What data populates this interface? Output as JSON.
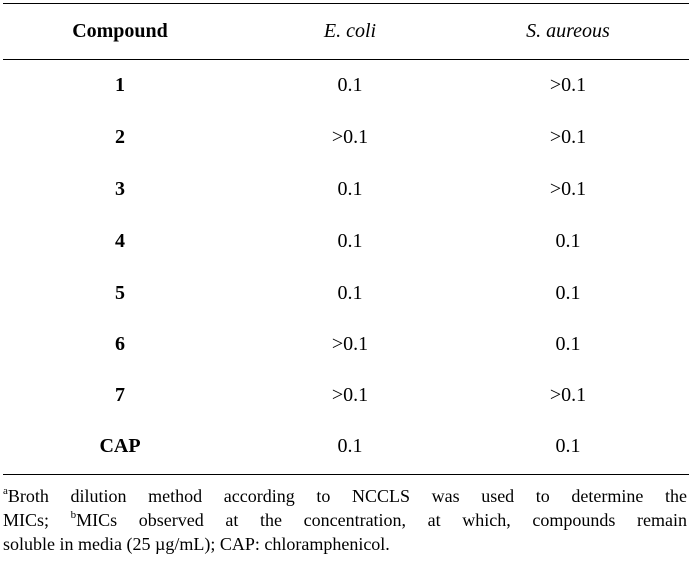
{
  "table": {
    "headers": {
      "compound": "Compound",
      "ecoli": "E. coli",
      "saureus": "S. aureous"
    },
    "rows": [
      {
        "compound": "1",
        "ecoli": "0.1",
        "saureus": ">0.1"
      },
      {
        "compound": "2",
        "ecoli": ">0.1",
        "saureus": ">0.1"
      },
      {
        "compound": "3",
        "ecoli": "0.1",
        "saureus": ">0.1"
      },
      {
        "compound": "4",
        "ecoli": "0.1",
        "saureus": "0.1"
      },
      {
        "compound": "5",
        "ecoli": "0.1",
        "saureus": "0.1"
      },
      {
        "compound": "6",
        "ecoli": ">0.1",
        "saureus": "0.1"
      },
      {
        "compound": "7",
        "ecoli": ">0.1",
        "saureus": ">0.1"
      },
      {
        "compound": "CAP",
        "ecoli": "0.1",
        "saureus": "0.1"
      }
    ]
  },
  "footnote": {
    "mark_a": "a",
    "line1": "Broth dilution method according to NCCLS was used to determine the",
    "line2_pre": "MICs; ",
    "mark_b": "b",
    "line2_post": "MICs observed at the concentration, at which, compounds remain",
    "line3": "soluble in media (25 µg/mL); CAP: chloramphenicol."
  }
}
